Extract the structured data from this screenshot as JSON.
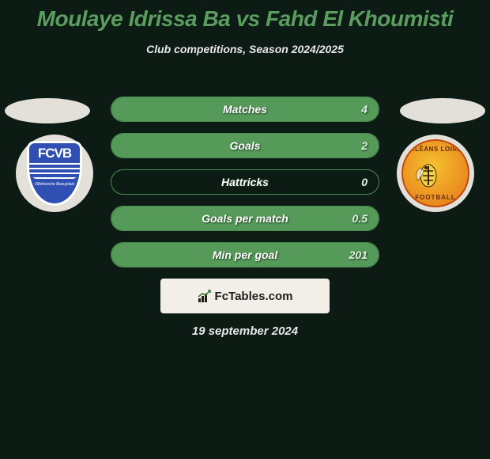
{
  "title": "Moulaye Idrissa Ba vs Fahd El Khoumisti",
  "subtitle": "Club competitions, Season 2024/2025",
  "date": "19 september 2024",
  "footer_brand": "FcTables.com",
  "colors": {
    "background": "#0d1b15",
    "title": "#5a9d5e",
    "text_light": "#e8e8e8",
    "bar_border": "#4a8d4e",
    "bar_fill": "#569a5a",
    "ellipse": "#e3e0d9",
    "footer_bg": "#f2efe8",
    "crest_left_bg": "#2f4fb3",
    "crest_right_bg_outer": "#d85d13",
    "crest_right_bg_inner": "#f6c22f"
  },
  "crest_left": {
    "letters": "FCVB",
    "sub": "Villefranche Beaujolais"
  },
  "crest_right": {
    "top_text": "ORLÉANS LOIRET",
    "bottom_text": "FOOTBALL"
  },
  "stats": [
    {
      "label": "Matches",
      "value": "4",
      "fill_pct": 100
    },
    {
      "label": "Goals",
      "value": "2",
      "fill_pct": 100
    },
    {
      "label": "Hattricks",
      "value": "0",
      "fill_pct": 0
    },
    {
      "label": "Goals per match",
      "value": "0.5",
      "fill_pct": 100
    },
    {
      "label": "Min per goal",
      "value": "201",
      "fill_pct": 100
    }
  ]
}
